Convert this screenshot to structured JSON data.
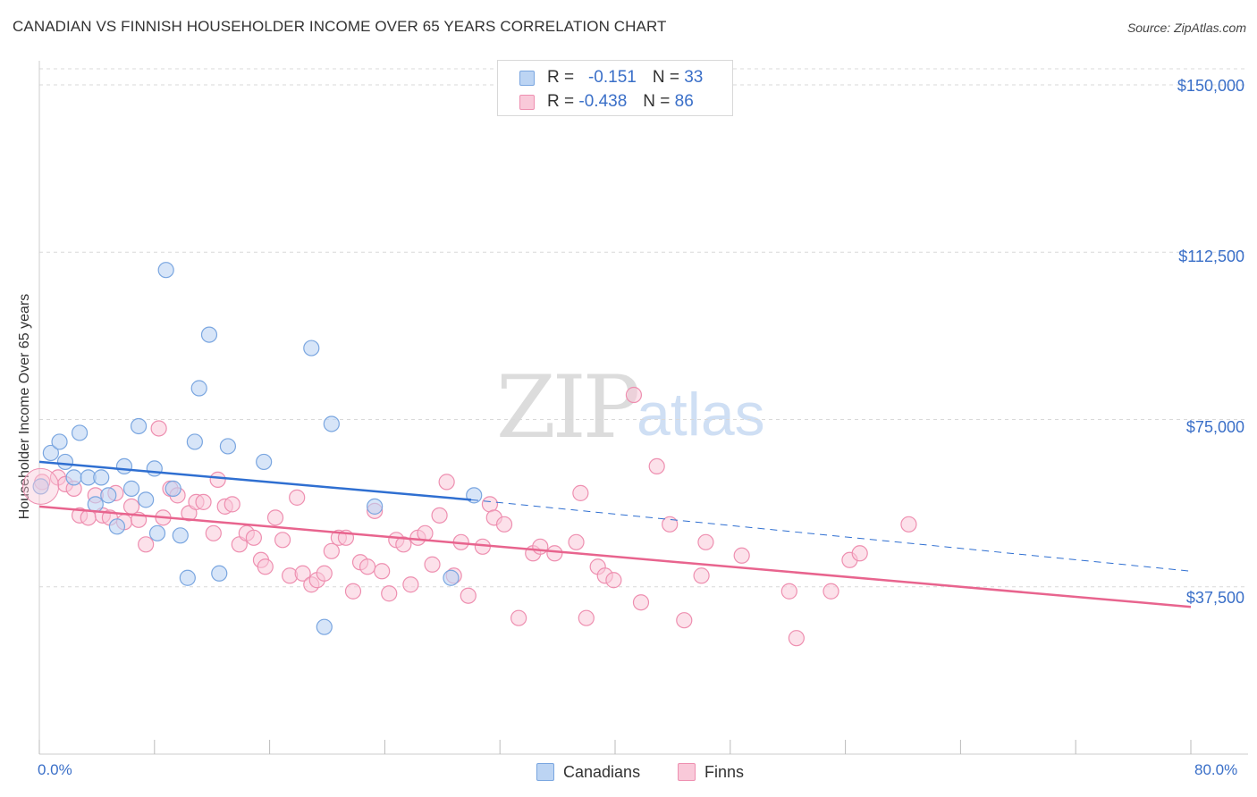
{
  "header": {
    "title": "CANADIAN VS FINNISH HOUSEHOLDER INCOME OVER 65 YEARS CORRELATION CHART",
    "source": "Source: ZipAtlas.com"
  },
  "watermark": {
    "zip": "ZIP",
    "atlas": "atlas"
  },
  "legend": {
    "rows": [
      {
        "r_label": "R =",
        "r_value": "-0.151",
        "n_label": "N =",
        "n_value": "33"
      },
      {
        "r_label": "R =",
        "r_value": "-0.438",
        "n_label": "N =",
        "n_value": "86"
      }
    ]
  },
  "bottom_legend": {
    "canadians": "Canadians",
    "finns": "Finns"
  },
  "axis": {
    "y_title": "Householder Income Over 65 years",
    "x_min_label": "0.0%",
    "x_max_label": "80.0%",
    "y_ticks": [
      "$150,000",
      "$112,500",
      "$75,000",
      "$37,500"
    ]
  },
  "colors": {
    "canadians_fill": "#bcd4f3",
    "canadians_stroke": "#7aa6e0",
    "canadians_line": "#2f6fd1",
    "finns_fill": "#f9c9d9",
    "finns_stroke": "#ee8fb0",
    "finns_line": "#e8648e",
    "tick_text": "#3a6fc8",
    "grid": "#d9d9d9"
  },
  "chart_data": {
    "type": "scatter",
    "title": "CANADIAN VS FINNISH HOUSEHOLDER INCOME OVER 65 YEARS CORRELATION CHART",
    "xlabel": "",
    "ylabel": "Householder Income Over 65 years",
    "xlim": [
      0,
      80
    ],
    "ylim": [
      0,
      157000
    ],
    "y_ticks": [
      37500,
      75000,
      112500,
      150000
    ],
    "x_ticks": [
      0,
      8,
      16,
      24,
      32,
      40,
      48,
      56,
      64,
      72,
      80
    ],
    "grid": true,
    "legend_position": "top-center",
    "series": [
      {
        "name": "Canadians",
        "r": -0.151,
        "n": 33,
        "trend": {
          "x": [
            0,
            30,
            80
          ],
          "y": [
            65500,
            57000,
            41000
          ],
          "solid_until": 30
        },
        "points": [
          [
            0.1,
            60000
          ],
          [
            0.8,
            67500
          ],
          [
            1.4,
            70000
          ],
          [
            1.8,
            65500
          ],
          [
            2.8,
            72000
          ],
          [
            2.4,
            62000
          ],
          [
            3.4,
            62000
          ],
          [
            4.3,
            62000
          ],
          [
            3.9,
            56000
          ],
          [
            4.8,
            58000
          ],
          [
            5.4,
            51000
          ],
          [
            5.9,
            64500
          ],
          [
            6.4,
            59500
          ],
          [
            6.9,
            73500
          ],
          [
            7.4,
            57000
          ],
          [
            8.0,
            64000
          ],
          [
            8.2,
            49500
          ],
          [
            8.8,
            108500
          ],
          [
            9.3,
            59500
          ],
          [
            9.8,
            49000
          ],
          [
            10.3,
            39500
          ],
          [
            10.8,
            70000
          ],
          [
            11.1,
            82000
          ],
          [
            11.8,
            94000
          ],
          [
            12.5,
            40500
          ],
          [
            13.1,
            69000
          ],
          [
            15.6,
            65500
          ],
          [
            18.9,
            91000
          ],
          [
            20.3,
            74000
          ],
          [
            23.3,
            55500
          ],
          [
            28.6,
            39500
          ],
          [
            30.2,
            58000
          ],
          [
            19.8,
            28500
          ]
        ]
      },
      {
        "name": "Finns",
        "r": -0.438,
        "n": 86,
        "trend": {
          "x": [
            0,
            80
          ],
          "y": [
            55500,
            33000
          ]
        },
        "points": [
          [
            0.2,
            61000
          ],
          [
            1.3,
            62000
          ],
          [
            1.8,
            60500
          ],
          [
            2.4,
            59500
          ],
          [
            2.8,
            53500
          ],
          [
            3.4,
            53000
          ],
          [
            3.9,
            58000
          ],
          [
            4.4,
            53500
          ],
          [
            4.9,
            53000
          ],
          [
            5.3,
            58500
          ],
          [
            5.9,
            52000
          ],
          [
            6.4,
            55500
          ],
          [
            6.9,
            52500
          ],
          [
            7.4,
            47000
          ],
          [
            8.3,
            73000
          ],
          [
            8.6,
            53000
          ],
          [
            9.1,
            59500
          ],
          [
            9.6,
            58000
          ],
          [
            10.4,
            54000
          ],
          [
            10.9,
            56500
          ],
          [
            11.4,
            56500
          ],
          [
            12.1,
            49500
          ],
          [
            12.4,
            61500
          ],
          [
            12.9,
            55500
          ],
          [
            13.4,
            56000
          ],
          [
            13.9,
            47000
          ],
          [
            14.4,
            49500
          ],
          [
            14.9,
            48500
          ],
          [
            15.4,
            43500
          ],
          [
            15.7,
            42000
          ],
          [
            16.4,
            53000
          ],
          [
            16.9,
            48000
          ],
          [
            17.4,
            40000
          ],
          [
            17.9,
            57500
          ],
          [
            18.3,
            40500
          ],
          [
            18.9,
            38000
          ],
          [
            19.3,
            39000
          ],
          [
            19.8,
            40500
          ],
          [
            20.3,
            45500
          ],
          [
            20.8,
            48500
          ],
          [
            21.3,
            48500
          ],
          [
            21.8,
            36500
          ],
          [
            22.3,
            43000
          ],
          [
            22.8,
            42000
          ],
          [
            23.3,
            54500
          ],
          [
            23.8,
            41000
          ],
          [
            24.3,
            36000
          ],
          [
            24.8,
            48000
          ],
          [
            25.3,
            47000
          ],
          [
            25.8,
            38000
          ],
          [
            26.3,
            48500
          ],
          [
            26.8,
            49500
          ],
          [
            27.3,
            42500
          ],
          [
            27.8,
            53500
          ],
          [
            28.3,
            61000
          ],
          [
            28.8,
            40000
          ],
          [
            29.3,
            47500
          ],
          [
            29.8,
            35500
          ],
          [
            30.8,
            46500
          ],
          [
            31.3,
            56000
          ],
          [
            31.6,
            53000
          ],
          [
            32.3,
            51500
          ],
          [
            33.3,
            30500
          ],
          [
            34.3,
            45000
          ],
          [
            34.8,
            46500
          ],
          [
            35.8,
            45000
          ],
          [
            37.3,
            47500
          ],
          [
            37.6,
            58500
          ],
          [
            38.0,
            30500
          ],
          [
            38.8,
            42000
          ],
          [
            39.3,
            40000
          ],
          [
            39.9,
            39000
          ],
          [
            41.3,
            80500
          ],
          [
            41.8,
            34000
          ],
          [
            42.9,
            64500
          ],
          [
            43.8,
            51500
          ],
          [
            44.8,
            30000
          ],
          [
            46.3,
            47500
          ],
          [
            48.8,
            44500
          ],
          [
            52.1,
            36500
          ],
          [
            52.6,
            26000
          ],
          [
            56.3,
            43500
          ],
          [
            57.0,
            45000
          ],
          [
            60.4,
            51500
          ],
          [
            55.0,
            36500
          ],
          [
            46.0,
            40000
          ]
        ]
      }
    ]
  }
}
